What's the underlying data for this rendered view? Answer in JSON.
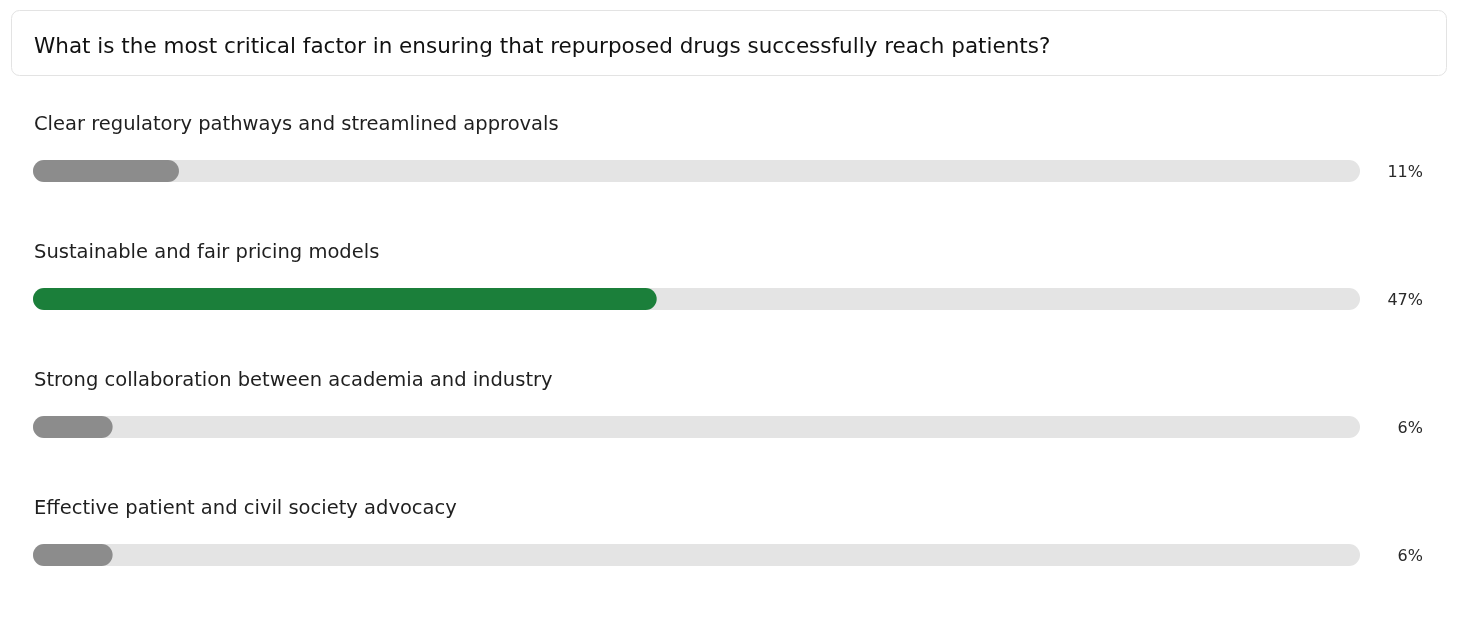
{
  "chart_data": {
    "type": "bar",
    "orientation": "horizontal",
    "title": "What is the most critical factor in ensuring that repurposed drugs successfully reach patients?",
    "categories": [
      "Clear regulatory pathways and streamlined approvals",
      "Sustainable and fair pricing models",
      "Strong collaboration between academia and industry",
      "Effective patient and civil society advocacy"
    ],
    "values": [
      11,
      47,
      6,
      6
    ],
    "colors": [
      "#8c8c8c",
      "#1b7f3a",
      "#8c8c8c",
      "#8c8c8c"
    ],
    "value_labels": [
      "11%",
      "47%",
      "6%",
      "6%"
    ],
    "xlim": [
      0,
      100
    ]
  }
}
